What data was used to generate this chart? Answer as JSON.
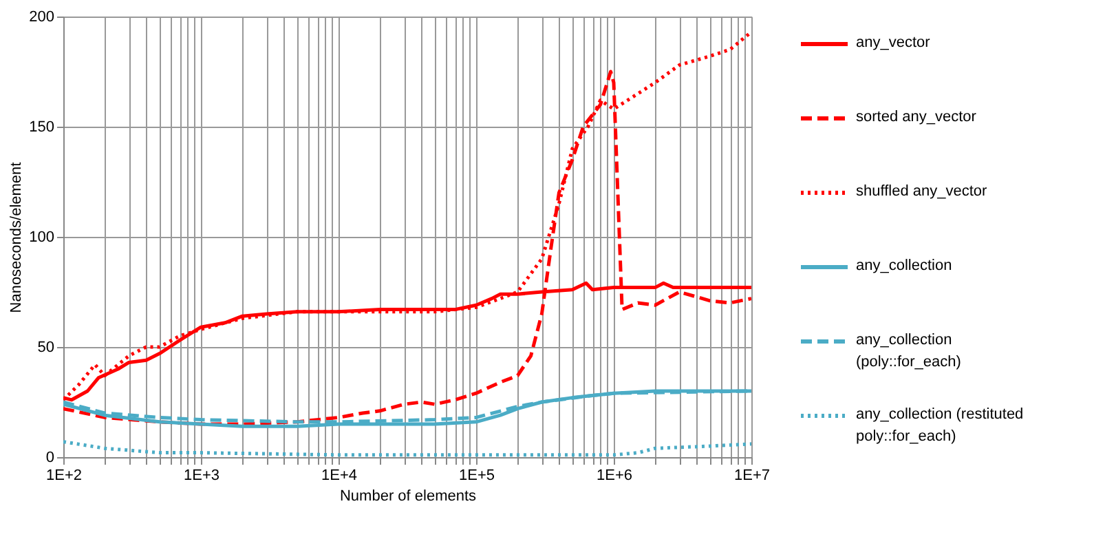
{
  "chart_data": {
    "type": "line",
    "xlabel": "Number of elements",
    "ylabel": "Nanoseconds/element",
    "log": "x",
    "grid": true,
    "legend": "right",
    "xlim": [
      100,
      10000000
    ],
    "ylim": [
      0,
      200
    ],
    "yticks": [
      0,
      50,
      100,
      150,
      200
    ],
    "xticks": [
      {
        "value": 100,
        "label": "1E+2"
      },
      {
        "value": 200,
        "label": null
      },
      {
        "value": 300,
        "label": null
      },
      {
        "value": 400,
        "label": null
      },
      {
        "value": 500,
        "label": null
      },
      {
        "value": 600,
        "label": null
      },
      {
        "value": 700,
        "label": null
      },
      {
        "value": 800,
        "label": null
      },
      {
        "value": 900,
        "label": null
      },
      {
        "value": 1000,
        "label": "1E+3"
      },
      {
        "value": 2000,
        "label": null
      },
      {
        "value": 3000,
        "label": null
      },
      {
        "value": 4000,
        "label": null
      },
      {
        "value": 5000,
        "label": null
      },
      {
        "value": 6000,
        "label": null
      },
      {
        "value": 7000,
        "label": null
      },
      {
        "value": 8000,
        "label": null
      },
      {
        "value": 9000,
        "label": null
      },
      {
        "value": 10000,
        "label": "1E+4"
      },
      {
        "value": 20000,
        "label": null
      },
      {
        "value": 30000,
        "label": null
      },
      {
        "value": 40000,
        "label": null
      },
      {
        "value": 50000,
        "label": null
      },
      {
        "value": 60000,
        "label": null
      },
      {
        "value": 70000,
        "label": null
      },
      {
        "value": 80000,
        "label": null
      },
      {
        "value": 90000,
        "label": null
      },
      {
        "value": 100000,
        "label": "1E+5"
      },
      {
        "value": 200000,
        "label": null
      },
      {
        "value": 300000,
        "label": null
      },
      {
        "value": 400000,
        "label": null
      },
      {
        "value": 500000,
        "label": null
      },
      {
        "value": 600000,
        "label": null
      },
      {
        "value": 700000,
        "label": null
      },
      {
        "value": 800000,
        "label": null
      },
      {
        "value": 900000,
        "label": null
      },
      {
        "value": 1000000,
        "label": "1E+6"
      },
      {
        "value": 2000000,
        "label": null
      },
      {
        "value": 3000000,
        "label": null
      },
      {
        "value": 4000000,
        "label": null
      },
      {
        "value": 5000000,
        "label": null
      },
      {
        "value": 6000000,
        "label": null
      },
      {
        "value": 7000000,
        "label": null
      },
      {
        "value": 8000000,
        "label": null
      },
      {
        "value": 9000000,
        "label": null
      },
      {
        "value": 10000000,
        "label": "1E+7"
      }
    ],
    "series": [
      {
        "name": "any_vector",
        "color": "#ff0000",
        "line_style": "solid",
        "x": [
          100,
          115,
          150,
          180,
          250,
          300,
          400,
          500,
          700,
          1000,
          1500,
          2000,
          3000,
          5000,
          10000,
          20000,
          50000,
          70000,
          100000,
          130000,
          150000,
          200000,
          300000,
          500000,
          630000,
          700000,
          1000000,
          2000000,
          2300000,
          2700000,
          5000000,
          10000000
        ],
        "values": [
          27,
          26,
          30,
          36,
          40,
          43,
          44,
          47,
          53,
          59,
          61,
          64,
          65,
          66,
          66,
          67,
          67,
          67,
          69,
          72,
          74,
          74,
          75,
          76,
          79,
          76,
          77,
          77,
          79,
          77,
          77,
          77
        ]
      },
      {
        "name": "sorted any_vector",
        "color": "#ff0000",
        "line_style": "dashed",
        "x": [
          100,
          200,
          500,
          1000,
          2000,
          5000,
          10000,
          15000,
          20000,
          30000,
          40000,
          50000,
          70000,
          100000,
          150000,
          200000,
          250000,
          300000,
          350000,
          400000,
          500000,
          600000,
          800000,
          950000,
          1000000,
          1150000,
          1500000,
          2000000,
          3000000,
          5000000,
          7000000,
          10000000
        ],
        "values": [
          22,
          18,
          16,
          15,
          15,
          16,
          18,
          20,
          21,
          24,
          25,
          24,
          26,
          29,
          34,
          37,
          46,
          65,
          95,
          120,
          135,
          150,
          160,
          175,
          170,
          67,
          70,
          69,
          75,
          71,
          70,
          72
        ]
      },
      {
        "name": "shuffled any_vector",
        "color": "#ff0000",
        "line_style": "dotted",
        "x": [
          100,
          130,
          170,
          200,
          300,
          400,
          500,
          700,
          1000,
          2000,
          5000,
          10000,
          50000,
          100000,
          150000,
          200000,
          300000,
          400000,
          500000,
          650000,
          800000,
          1000000,
          1500000,
          2000000,
          3000000,
          5000000,
          7000000,
          10000000
        ],
        "values": [
          26,
          33,
          42,
          37,
          46,
          50,
          50,
          55,
          58,
          63,
          66,
          66,
          66,
          68,
          72,
          75,
          90,
          115,
          140,
          150,
          162,
          158,
          165,
          170,
          178,
          182,
          185,
          193
        ]
      },
      {
        "name": "any_collection",
        "color": "#4bacc6",
        "line_style": "solid",
        "x": [
          100,
          200,
          500,
          1000,
          2000,
          5000,
          10000,
          50000,
          100000,
          150000,
          200000,
          300000,
          500000,
          1000000,
          2000000,
          10000000
        ],
        "values": [
          24,
          19,
          16,
          15,
          14,
          14,
          15,
          15,
          16,
          19,
          22,
          25,
          27,
          29,
          30,
          30
        ]
      },
      {
        "name": "any_collection (poly::for_each)",
        "color": "#4bacc6",
        "line_style": "dashed",
        "x": [
          100,
          200,
          500,
          1000,
          5000,
          10000,
          50000,
          100000,
          200000,
          300000,
          700000,
          1000000,
          10000000
        ],
        "values": [
          25,
          20,
          18,
          17,
          16,
          16,
          17,
          18,
          23,
          25,
          28,
          29,
          30
        ]
      },
      {
        "name": "any_collection (restituted poly::for_each)",
        "color": "#4bacc6",
        "line_style": "dotted",
        "x": [
          100,
          200,
          500,
          1000,
          10000,
          100000,
          1000000,
          1500000,
          2000000,
          5000000,
          10000000
        ],
        "values": [
          7,
          4,
          2,
          2,
          1,
          1,
          1,
          2,
          4,
          5,
          6
        ]
      }
    ]
  }
}
